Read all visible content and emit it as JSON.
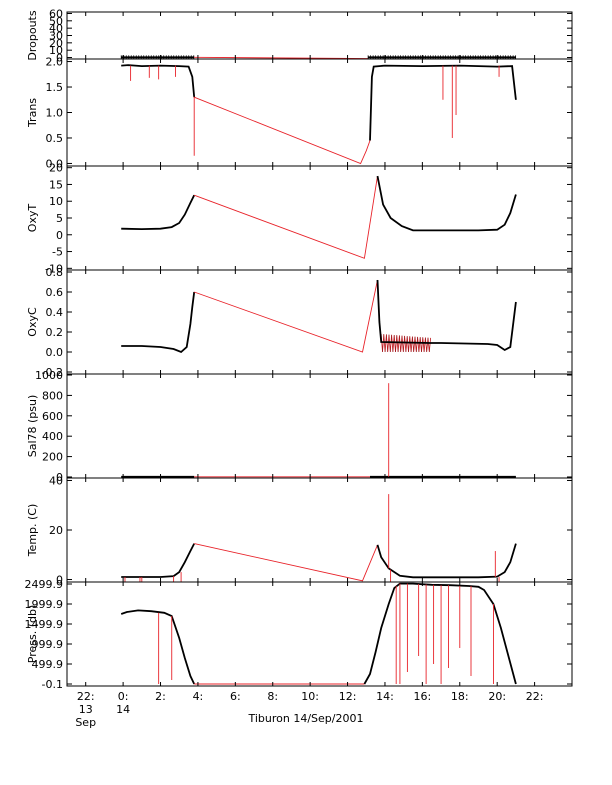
{
  "figure_title": "Tiburon 14/Sep/2001",
  "colors": {
    "instrument": "#000000",
    "interpolated": "#e8232a",
    "frame": "#000000",
    "background": "#ffffff"
  },
  "x_axis": {
    "tick_labels": [
      "22:",
      "0:",
      "2:",
      "4:",
      "6:",
      "8:",
      "10:",
      "12:",
      "14:",
      "16:",
      "18:",
      "20:",
      "22:"
    ],
    "tick_hours": [
      -2,
      0,
      2,
      4,
      6,
      8,
      10,
      12,
      14,
      16,
      18,
      20,
      22
    ],
    "day_labels": [
      {
        "hour": -2,
        "day": "13",
        "month": "Sep"
      },
      {
        "hour": 0,
        "day": "14",
        "month": ""
      }
    ],
    "xlim": [
      -3,
      24
    ]
  },
  "chart_data": [
    {
      "type": "line",
      "ylabel": "Dropouts",
      "ylim": [
        -2,
        62
      ],
      "y_ticks": [
        0,
        10,
        20,
        30,
        40,
        50,
        60
      ],
      "y_tick_labels": [
        "0",
        "10",
        "20",
        "30",
        "40",
        "50",
        "60"
      ],
      "series": [
        {
          "color": "#000000",
          "x": [
            -0.1,
            3.8
          ],
          "y": [
            0.3,
            0.3
          ],
          "markers": true
        },
        {
          "color": "#e8232a",
          "x": [
            3.8,
            13.1
          ],
          "y": [
            0.3,
            -1.5
          ]
        },
        {
          "color": "#000000",
          "x": [
            13.1,
            21.0
          ],
          "y": [
            0.3,
            0.3
          ],
          "markers": true
        }
      ]
    },
    {
      "type": "line",
      "ylabel": "Trans",
      "ylim": [
        -0.05,
        2.05
      ],
      "y_ticks": [
        0.0,
        0.5,
        1.0,
        1.5,
        2.0
      ],
      "y_tick_labels": [
        "0.0",
        "0.5",
        "1.0",
        "1.5",
        "2.0"
      ],
      "series": [
        {
          "color": "#000000",
          "x": [
            -0.1,
            0.3,
            1.0,
            2.0,
            3.0,
            3.5,
            3.7,
            3.8
          ],
          "y": [
            1.92,
            1.93,
            1.91,
            1.92,
            1.91,
            1.9,
            1.7,
            1.3
          ]
        },
        {
          "color": "#e8232a",
          "x": [
            3.8,
            3.8,
            3.8,
            12.7,
            13.0,
            13.2
          ],
          "y": [
            1.3,
            0.15,
            1.3,
            0.0,
            0.25,
            0.45
          ]
        },
        {
          "color": "#000000",
          "x": [
            13.2,
            13.3,
            13.4,
            14.0,
            16.0,
            18.0,
            20.0,
            20.8,
            21.0
          ],
          "y": [
            0.45,
            1.7,
            1.9,
            1.92,
            1.91,
            1.92,
            1.9,
            1.91,
            1.25
          ]
        }
      ],
      "spikes": [
        {
          "color": "#e8232a",
          "x": 0.4,
          "y_from": 1.92,
          "y_to": 1.62
        },
        {
          "color": "#e8232a",
          "x": 1.4,
          "y_from": 1.92,
          "y_to": 1.68
        },
        {
          "color": "#e8232a",
          "x": 1.9,
          "y_from": 1.92,
          "y_to": 1.65
        },
        {
          "color": "#e8232a",
          "x": 2.8,
          "y_from": 1.92,
          "y_to": 1.7
        },
        {
          "color": "#e8232a",
          "x": 17.1,
          "y_from": 1.92,
          "y_to": 1.25
        },
        {
          "color": "#e8232a",
          "x": 17.6,
          "y_from": 1.92,
          "y_to": 0.5
        },
        {
          "color": "#e8232a",
          "x": 17.8,
          "y_from": 1.92,
          "y_to": 0.95
        },
        {
          "color": "#e8232a",
          "x": 20.1,
          "y_from": 1.92,
          "y_to": 1.7
        }
      ]
    },
    {
      "type": "line",
      "ylabel": "OxyT",
      "ylim": [
        -10.5,
        20.5
      ],
      "y_ticks": [
        -10,
        -5,
        0,
        5,
        10,
        15,
        20
      ],
      "y_tick_labels": [
        "-10",
        "-5",
        "0",
        "5",
        "10",
        "15",
        "20"
      ],
      "series": [
        {
          "color": "#000000",
          "x": [
            -0.1,
            1.0,
            2.0,
            2.6,
            3.0,
            3.3,
            3.6,
            3.8
          ],
          "y": [
            1.8,
            1.7,
            1.8,
            2.3,
            3.5,
            6.0,
            9.5,
            11.8
          ]
        },
        {
          "color": "#e8232a",
          "x": [
            3.8,
            12.9,
            13.6
          ],
          "y": [
            11.8,
            -7.0,
            17.5
          ]
        },
        {
          "color": "#000000",
          "x": [
            13.6,
            13.9,
            14.3,
            14.9,
            15.5,
            17.0,
            19.0,
            20.0,
            20.4,
            20.7,
            21.0
          ],
          "y": [
            17.5,
            9.0,
            5.0,
            2.6,
            1.3,
            1.3,
            1.3,
            1.5,
            3.0,
            6.5,
            12.0
          ]
        }
      ]
    },
    {
      "type": "line",
      "ylabel": "OxyC",
      "ylim": [
        -0.22,
        0.82
      ],
      "y_ticks": [
        -0.2,
        0.0,
        0.2,
        0.4,
        0.6,
        0.8
      ],
      "y_tick_labels": [
        "-0.2",
        "0.0",
        "0.2",
        "0.4",
        "0.6",
        "0.8"
      ],
      "series": [
        {
          "color": "#000000",
          "x": [
            -0.1,
            1.0,
            2.0,
            2.7,
            3.1,
            3.4,
            3.6,
            3.7,
            3.8
          ],
          "y": [
            0.06,
            0.06,
            0.05,
            0.03,
            0.0,
            0.05,
            0.28,
            0.45,
            0.6
          ]
        },
        {
          "color": "#e8232a",
          "x": [
            3.8,
            12.8,
            13.6
          ],
          "y": [
            0.6,
            0.0,
            0.72
          ]
        },
        {
          "color": "#000000",
          "x": [
            13.6,
            13.7,
            13.8,
            16.4,
            17.0,
            19.5,
            20.0,
            20.4,
            20.7,
            21.0
          ],
          "y": [
            0.72,
            0.3,
            0.1,
            0.09,
            0.09,
            0.08,
            0.07,
            0.02,
            0.05,
            0.5
          ]
        }
      ],
      "noise_band": {
        "color": "#e8232a",
        "x_start": 13.8,
        "x_end": 16.5,
        "y_low": 0.0,
        "y_high": 0.18
      }
    },
    {
      "type": "line",
      "ylabel": "Sal78 (psu)",
      "ylim": [
        -10,
        1010
      ],
      "y_ticks": [
        0,
        200,
        400,
        600,
        800,
        1000
      ],
      "y_tick_labels": [
        "0",
        "200",
        "400",
        "600",
        "800",
        "1000"
      ],
      "series": [
        {
          "color": "#000000",
          "x": [
            -0.1,
            3.8
          ],
          "y": [
            1.5,
            1.5
          ]
        },
        {
          "color": "#e8232a",
          "x": [
            3.8,
            13.2
          ],
          "y": [
            1.5,
            1.5
          ]
        },
        {
          "color": "#000000",
          "x": [
            13.2,
            21.0
          ],
          "y": [
            1.5,
            1.5
          ]
        }
      ],
      "spikes": [
        {
          "color": "#e8232a",
          "x": 14.2,
          "y_from": 1.5,
          "y_to": 920
        }
      ]
    },
    {
      "type": "line",
      "ylabel": "Temp. (C)",
      "ylim": [
        -1,
        41
      ],
      "y_ticks": [
        0,
        20,
        40
      ],
      "y_tick_labels": [
        "0",
        "20",
        "40"
      ],
      "series": [
        {
          "color": "#000000",
          "x": [
            -0.1,
            2.0,
            2.7,
            3.0,
            3.3,
            3.6,
            3.8
          ],
          "y": [
            1.0,
            1.0,
            1.4,
            3.0,
            7.0,
            11.5,
            14.5
          ]
        },
        {
          "color": "#e8232a",
          "x": [
            3.8,
            12.8,
            13.6
          ],
          "y": [
            14.5,
            -0.5,
            14.0
          ]
        },
        {
          "color": "#000000",
          "x": [
            13.6,
            13.8,
            14.2,
            14.8,
            15.5,
            19.0,
            20.0,
            20.4,
            20.7,
            21.0
          ],
          "y": [
            14.0,
            9.0,
            4.5,
            1.5,
            0.9,
            0.9,
            1.2,
            3.0,
            7.0,
            14.5
          ]
        }
      ],
      "spikes": [
        {
          "color": "#e8232a",
          "x": 0.1,
          "y_from": 1.0,
          "y_to": -1.0
        },
        {
          "color": "#e8232a",
          "x": 0.9,
          "y_from": 1.0,
          "y_to": -1.0
        },
        {
          "color": "#e8232a",
          "x": 1.0,
          "y_from": 1.0,
          "y_to": -1.0
        },
        {
          "color": "#e8232a",
          "x": 2.7,
          "y_from": 1.4,
          "y_to": -1.0
        },
        {
          "color": "#e8232a",
          "x": 3.1,
          "y_from": 3.0,
          "y_to": -1.0
        },
        {
          "color": "#e8232a",
          "x": 14.2,
          "y_from": 4.5,
          "y_to": 34.5
        },
        {
          "color": "#e8232a",
          "x": 14.3,
          "y_from": 4.0,
          "y_to": -1.0
        },
        {
          "color": "#e8232a",
          "x": 19.9,
          "y_from": 1.0,
          "y_to": 11.5
        },
        {
          "color": "#e8232a",
          "x": 20.1,
          "y_from": 1.0,
          "y_to": -1.0
        }
      ]
    },
    {
      "type": "line",
      "ylabel": "Press. (db)",
      "ylim": [
        -50,
        2550
      ],
      "y_ticks": [
        -0.1,
        499.9,
        999.9,
        1499.9,
        1999.9,
        2499.9
      ],
      "y_tick_labels": [
        "-0.1",
        "499.9",
        "999.9",
        "1499.9",
        "1999.9",
        "2499.9"
      ],
      "series": [
        {
          "color": "#000000",
          "x": [
            -0.1,
            0.2,
            0.8,
            1.5,
            2.2,
            2.6,
            3.0,
            3.3,
            3.6,
            3.8
          ],
          "y": [
            1750,
            1800,
            1840,
            1820,
            1780,
            1700,
            1150,
            650,
            200,
            0
          ]
        },
        {
          "color": "#e8232a",
          "x": [
            3.8,
            12.9
          ],
          "y": [
            0,
            0
          ]
        },
        {
          "color": "#000000",
          "x": [
            12.9,
            13.2,
            13.5,
            13.8,
            14.2,
            14.5,
            14.8,
            15.5,
            16.5,
            17.5,
            18.5,
            19.0,
            19.3,
            19.8,
            20.2,
            20.6,
            21.0
          ],
          "y": [
            0,
            250,
            800,
            1400,
            2000,
            2400,
            2510,
            2510,
            2480,
            2470,
            2450,
            2430,
            2350,
            2000,
            1400,
            700,
            0
          ]
        }
      ],
      "spikes": [
        {
          "color": "#e8232a",
          "x": 1.9,
          "y_from": 1780,
          "y_to": 0
        },
        {
          "color": "#e8232a",
          "x": 2.6,
          "y_from": 1700,
          "y_to": 100
        },
        {
          "color": "#e8232a",
          "x": 14.6,
          "y_from": 2450,
          "y_to": 0
        },
        {
          "color": "#e8232a",
          "x": 14.8,
          "y_from": 2510,
          "y_to": 0
        },
        {
          "color": "#e8232a",
          "x": 15.2,
          "y_from": 2510,
          "y_to": 300
        },
        {
          "color": "#e8232a",
          "x": 15.8,
          "y_from": 2500,
          "y_to": 700
        },
        {
          "color": "#e8232a",
          "x": 16.2,
          "y_from": 2490,
          "y_to": 0
        },
        {
          "color": "#e8232a",
          "x": 16.6,
          "y_from": 2480,
          "y_to": 500
        },
        {
          "color": "#e8232a",
          "x": 17.0,
          "y_from": 2470,
          "y_to": 0
        },
        {
          "color": "#e8232a",
          "x": 17.4,
          "y_from": 2470,
          "y_to": 400
        },
        {
          "color": "#e8232a",
          "x": 18.0,
          "y_from": 2460,
          "y_to": 900
        },
        {
          "color": "#e8232a",
          "x": 18.6,
          "y_from": 2450,
          "y_to": 200
        },
        {
          "color": "#e8232a",
          "x": 19.8,
          "y_from": 2000,
          "y_to": 0
        }
      ]
    }
  ]
}
